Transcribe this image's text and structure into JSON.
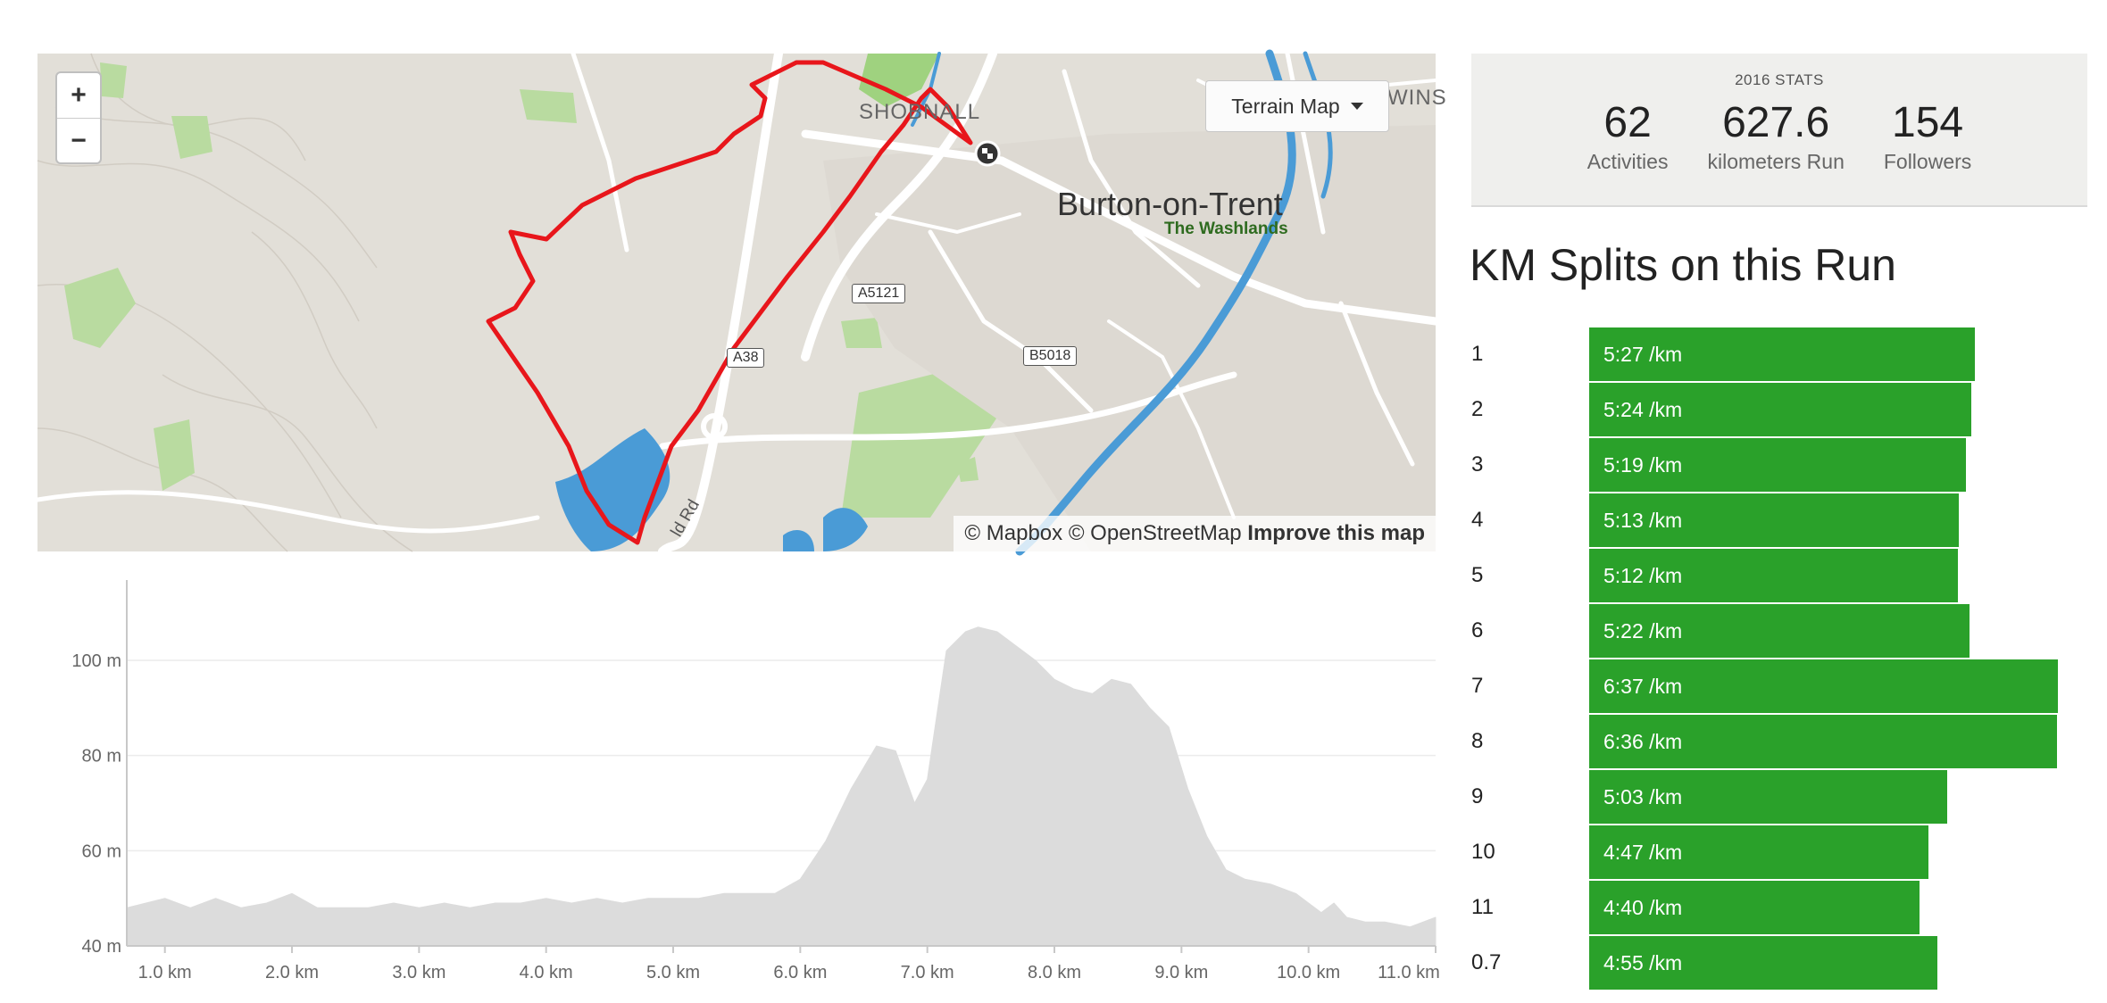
{
  "map": {
    "zoom_in": "+",
    "zoom_out": "−",
    "terrain_button": "Terrain Map",
    "attribution": {
      "mapbox": "© Mapbox",
      "osm": "© OpenStreetMap",
      "improve": "Improve this map"
    },
    "labels": {
      "town": "Burton-on-Trent",
      "park": "The Washlands",
      "village": "SHOBNALL",
      "partial_village": "WINS",
      "road_a5121": "A5121",
      "road_a38": "A38",
      "road_b5018": "B5018",
      "road_name": "ld Rd"
    },
    "colors": {
      "route": "#e8161b",
      "water": "#4a9bd6",
      "park": "#9fd27f"
    }
  },
  "stats": {
    "heading": "2016 STATS",
    "items": [
      {
        "value": "62",
        "label": "Activities"
      },
      {
        "value": "627.6",
        "label": "kilometers Run"
      },
      {
        "value": "154",
        "label": "Followers"
      }
    ]
  },
  "splits": {
    "title": "KM Splits on this Run",
    "bar_color": "#2aa12a",
    "rows": [
      {
        "km": "1",
        "pace": "5:27 /km",
        "seconds": 327
      },
      {
        "km": "2",
        "pace": "5:24 /km",
        "seconds": 324
      },
      {
        "km": "3",
        "pace": "5:19 /km",
        "seconds": 319
      },
      {
        "km": "4",
        "pace": "5:13 /km",
        "seconds": 313
      },
      {
        "km": "5",
        "pace": "5:12 /km",
        "seconds": 312
      },
      {
        "km": "6",
        "pace": "5:22 /km",
        "seconds": 322
      },
      {
        "km": "7",
        "pace": "6:37 /km",
        "seconds": 397
      },
      {
        "km": "8",
        "pace": "6:36 /km",
        "seconds": 396
      },
      {
        "km": "9",
        "pace": "5:03 /km",
        "seconds": 303
      },
      {
        "km": "10",
        "pace": "4:47 /km",
        "seconds": 287
      },
      {
        "km": "11",
        "pace": "4:40 /km",
        "seconds": 280
      },
      {
        "km": "0.7",
        "pace": "4:55 /km",
        "seconds": 295
      }
    ]
  },
  "chart_data": {
    "type": "area",
    "title": "",
    "xlabel": "",
    "ylabel": "",
    "x_unit": "km",
    "y_unit": "m",
    "xlim": [
      0.7,
      11.0
    ],
    "ylim": [
      40,
      115
    ],
    "x_ticks": [
      "1.0 km",
      "2.0 km",
      "3.0 km",
      "4.0 km",
      "5.0 km",
      "6.0 km",
      "7.0 km",
      "8.0 km",
      "9.0 km",
      "10.0 km",
      "11.0 km"
    ],
    "y_ticks": [
      "40 m",
      "60 m",
      "80 m",
      "100 m"
    ],
    "grid": true,
    "fill_color": "#dcdcdc",
    "x": [
      0.7,
      1.0,
      1.2,
      1.4,
      1.6,
      1.8,
      2.0,
      2.2,
      2.4,
      2.6,
      2.8,
      3.0,
      3.2,
      3.4,
      3.6,
      3.8,
      4.0,
      4.2,
      4.4,
      4.6,
      4.8,
      5.0,
      5.2,
      5.4,
      5.6,
      5.8,
      6.0,
      6.2,
      6.4,
      6.6,
      6.75,
      6.9,
      7.0,
      7.15,
      7.3,
      7.4,
      7.55,
      7.7,
      7.85,
      8.0,
      8.15,
      8.3,
      8.45,
      8.6,
      8.75,
      8.9,
      9.05,
      9.2,
      9.35,
      9.5,
      9.7,
      9.9,
      10.1,
      10.2,
      10.3,
      10.45,
      10.6,
      10.8,
      11.0
    ],
    "values": [
      48,
      50,
      48,
      50,
      48,
      49,
      51,
      48,
      48,
      48,
      49,
      48,
      49,
      48,
      49,
      49,
      50,
      49,
      50,
      49,
      50,
      50,
      50,
      51,
      51,
      51,
      54,
      62,
      73,
      82,
      81,
      70,
      75,
      102,
      106,
      107,
      106,
      103,
      100,
      96,
      94,
      93,
      96,
      95,
      90,
      86,
      73,
      63,
      56,
      54,
      53,
      51,
      47,
      49,
      46,
      45,
      45,
      44,
      46
    ]
  }
}
